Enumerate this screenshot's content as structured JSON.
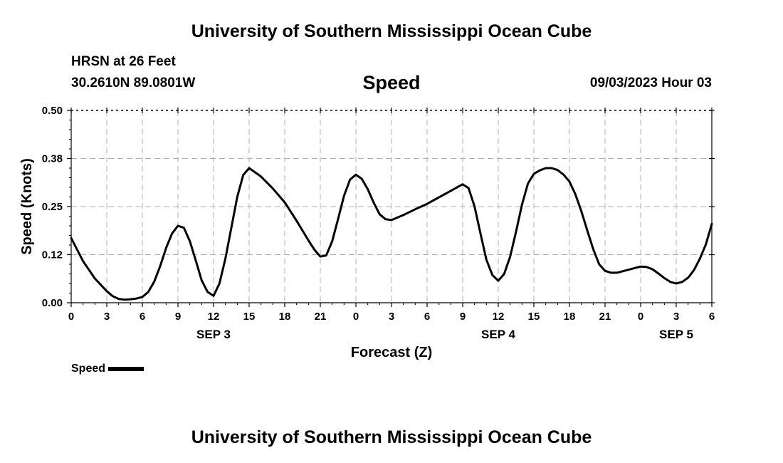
{
  "header": {
    "title": "University of Southern Mississippi Ocean Cube",
    "station": "HRSN at 26 Feet",
    "coordinates": "30.2610N  89.0801W",
    "chart_title": "Speed",
    "datetime": "09/03/2023 Hour 03"
  },
  "footer": {
    "title": "University of Southern Mississippi Ocean Cube"
  },
  "legend": {
    "label": "Speed"
  },
  "chart_data": {
    "type": "line",
    "title": "Speed",
    "xlabel": "Forecast (Z)",
    "ylabel": "Speed (Knots)",
    "x_unit": "hours",
    "xlim": [
      0,
      54
    ],
    "ylim": [
      0,
      0.5
    ],
    "y_ticks": [
      "0.00",
      "0.12",
      "0.25",
      "0.38",
      "0.50"
    ],
    "x_ticks": [
      {
        "x": 0,
        "label": "0"
      },
      {
        "x": 3,
        "label": "3"
      },
      {
        "x": 6,
        "label": "6"
      },
      {
        "x": 9,
        "label": "9"
      },
      {
        "x": 12,
        "label": "12"
      },
      {
        "x": 15,
        "label": "15"
      },
      {
        "x": 18,
        "label": "18"
      },
      {
        "x": 21,
        "label": "21"
      },
      {
        "x": 24,
        "label": "0"
      },
      {
        "x": 27,
        "label": "3"
      },
      {
        "x": 30,
        "label": "6"
      },
      {
        "x": 33,
        "label": "9"
      },
      {
        "x": 36,
        "label": "12"
      },
      {
        "x": 39,
        "label": "15"
      },
      {
        "x": 42,
        "label": "18"
      },
      {
        "x": 45,
        "label": "21"
      },
      {
        "x": 48,
        "label": "0"
      },
      {
        "x": 51,
        "label": "3"
      },
      {
        "x": 54,
        "label": "6"
      }
    ],
    "date_labels": [
      {
        "x": 12,
        "label": "SEP 3"
      },
      {
        "x": 36,
        "label": "SEP 4"
      },
      {
        "x": 51,
        "label": "SEP 5"
      }
    ],
    "grid": true,
    "legend_position": "bottom-left",
    "series": [
      {
        "name": "Speed",
        "color": "#000000",
        "x": [
          0,
          1,
          2,
          3,
          3.5,
          4,
          4.5,
          5,
          5.5,
          6,
          6.5,
          7,
          7.5,
          8,
          8.5,
          9,
          9.5,
          10,
          10.5,
          11,
          11.5,
          12,
          12.5,
          13,
          13.5,
          14,
          14.5,
          15,
          16,
          17,
          18,
          19,
          20,
          20.5,
          21,
          21.5,
          22,
          22.5,
          23,
          23.5,
          24,
          24.5,
          25,
          25.5,
          26,
          26.5,
          27,
          28,
          29,
          30,
          31,
          32,
          33,
          33.5,
          34,
          34.5,
          35,
          35.5,
          36,
          36.5,
          37,
          37.5,
          38,
          38.5,
          39,
          39.5,
          40,
          40.5,
          41,
          41.5,
          42,
          42.5,
          43,
          43.5,
          44,
          44.5,
          45,
          45.5,
          46,
          47,
          48,
          48.5,
          49,
          49.5,
          50,
          50.5,
          51,
          51.5,
          52,
          52.5,
          53,
          53.5,
          54
        ],
        "y": [
          0.168,
          0.108,
          0.063,
          0.03,
          0.017,
          0.01,
          0.008,
          0.009,
          0.011,
          0.015,
          0.028,
          0.055,
          0.095,
          0.142,
          0.18,
          0.2,
          0.195,
          0.16,
          0.11,
          0.058,
          0.028,
          0.018,
          0.05,
          0.115,
          0.195,
          0.275,
          0.332,
          0.35,
          0.328,
          0.297,
          0.261,
          0.213,
          0.162,
          0.138,
          0.12,
          0.123,
          0.16,
          0.218,
          0.278,
          0.32,
          0.333,
          0.322,
          0.295,
          0.26,
          0.23,
          0.217,
          0.215,
          0.228,
          0.243,
          0.257,
          0.274,
          0.291,
          0.308,
          0.298,
          0.25,
          0.18,
          0.112,
          0.072,
          0.057,
          0.075,
          0.12,
          0.185,
          0.255,
          0.31,
          0.335,
          0.344,
          0.35,
          0.35,
          0.345,
          0.333,
          0.315,
          0.282,
          0.238,
          0.188,
          0.14,
          0.1,
          0.083,
          0.078,
          0.078,
          0.086,
          0.094,
          0.093,
          0.087,
          0.076,
          0.064,
          0.054,
          0.05,
          0.054,
          0.065,
          0.085,
          0.115,
          0.152,
          0.205
        ]
      }
    ]
  }
}
